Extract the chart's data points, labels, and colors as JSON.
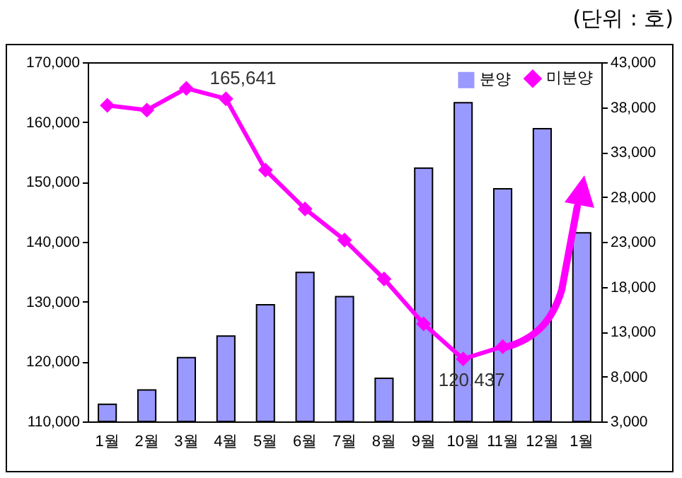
{
  "chart_data": {
    "type": "line",
    "categories": [
      "1월",
      "2월",
      "3월",
      "4월",
      "5월",
      "6월",
      "7월",
      "8월",
      "9월",
      "10월",
      "11월",
      "12월",
      "1월"
    ],
    "series": [
      {
        "name": "분양",
        "type": "bar",
        "axis": "y2",
        "color": "#9999ff",
        "values": [
          4900,
          6500,
          10100,
          12500,
          16000,
          19600,
          16900,
          7800,
          31200,
          38500,
          28900,
          35600,
          24000
        ]
      },
      {
        "name": "미분양",
        "color": "#ff00ff",
        "values": [
          162800,
          162000,
          165641,
          163900,
          152000,
          145500,
          140300,
          133800,
          126300,
          120437,
          122500,
          null,
          null
        ]
      }
    ],
    "ylim": [
      110000,
      170000
    ],
    "yticks": [
      {
        "value": 110000,
        "label": "110,000"
      },
      {
        "value": 120000,
        "label": "120,000"
      },
      {
        "value": 130000,
        "label": "130,000"
      },
      {
        "value": 140000,
        "label": "140,000"
      },
      {
        "value": 150000,
        "label": "150,000"
      },
      {
        "value": 160000,
        "label": "160,000"
      },
      {
        "value": 170000,
        "label": "170,000"
      }
    ],
    "y2lim": [
      3000,
      43000
    ],
    "y2ticks": [
      {
        "value": 3000,
        "label": "3,000"
      },
      {
        "value": 8000,
        "label": "8,000"
      },
      {
        "value": 13000,
        "label": "13,000"
      },
      {
        "value": 18000,
        "label": "18,000"
      },
      {
        "value": 23000,
        "label": "23,000"
      },
      {
        "value": 28000,
        "label": "28,000"
      },
      {
        "value": 33000,
        "label": "33,000"
      },
      {
        "value": 38000,
        "label": "38,000"
      },
      {
        "value": 43000,
        "label": "43,000"
      }
    ],
    "annotations": [
      "(단위 : 호)",
      {
        "text": "165,641",
        "x": "3월",
        "y": 165641
      },
      {
        "text": "120,437",
        "x": "10월",
        "y": 120437
      }
    ],
    "marker": "diamond",
    "legend": "top right",
    "grid": false
  }
}
